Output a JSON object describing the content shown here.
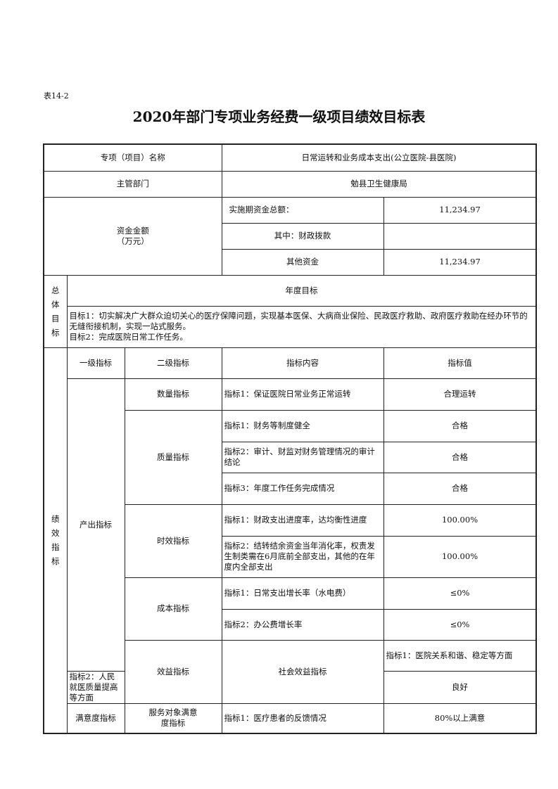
{
  "doc": {
    "table_no": "表14-2",
    "title": "2020年部门专项业务经费一级项目绩效目标表"
  },
  "project": {
    "name_label": "专项（项目）名称",
    "name_value": "日常运转和业务成本支出(公立医院-县医院)",
    "dept_label": "主管部门",
    "dept_value": "勉县卫生健康局",
    "fund_label": "资金金额",
    "fund_unit": "（万元）",
    "total_label": "实施期资金总额：",
    "total_value": "11,234.97",
    "fiscal_label": "其中：财政拨款",
    "fiscal_value": "",
    "other_label": "其他资金",
    "other_value": "11,234.97"
  },
  "goals": {
    "side_label": "总体目标",
    "header": "年度目标",
    "goal1": "目标1：切实解决广大群众迫切关心的医疗保障问题，实现基本医保、大病商业保险、民政医疗救助、政府医疗救助在经办环节的无缝衔接机制，实现一站式服务。",
    "goal2": "目标2：完成医院日常工作任务。"
  },
  "perf": {
    "side_label": "绩效指标",
    "headers": [
      "一级指标",
      "二级指标",
      "指标内容",
      "指标值"
    ],
    "level1": [
      "产出指标",
      "效益指标",
      "满意度指标"
    ],
    "level2": [
      "数量指标",
      "质量指标",
      "时效指标",
      "成本指标",
      "社会效益指标",
      "服务对象满意度指标"
    ],
    "rows": [
      {
        "content": "指标1：保证医院日常业务正常运转",
        "value": "合理运转"
      },
      {
        "content": "指标1：财务等制度健全",
        "value": "合格"
      },
      {
        "content": "指标2：审计、财监对财务管理情况的审计结论",
        "value": "合格"
      },
      {
        "content": "指标3：年度工作任务完成情况",
        "value": "合格"
      },
      {
        "content": "指标1：财政支出进度率，达均衡性进度",
        "value": "100.00%"
      },
      {
        "content": "指标2：结转结余资金当年消化率，权责发生制类需在6月底前全部支出，其他的在年度内全部支出",
        "value": "100.00%"
      },
      {
        "content": "指标1：日常支出增长率（水电费）",
        "value": "≤0%"
      },
      {
        "content": "指标2：办公费增长率",
        "value": "≤0%"
      },
      {
        "content": "指标1：医院关系和谐、稳定等方面",
        "value": "良好"
      },
      {
        "content": "指标2：人民就医质量提高等方面",
        "value": "良好"
      },
      {
        "content": "指标1：医疗患者的反馈情况",
        "value": "80%以上满意"
      }
    ]
  }
}
